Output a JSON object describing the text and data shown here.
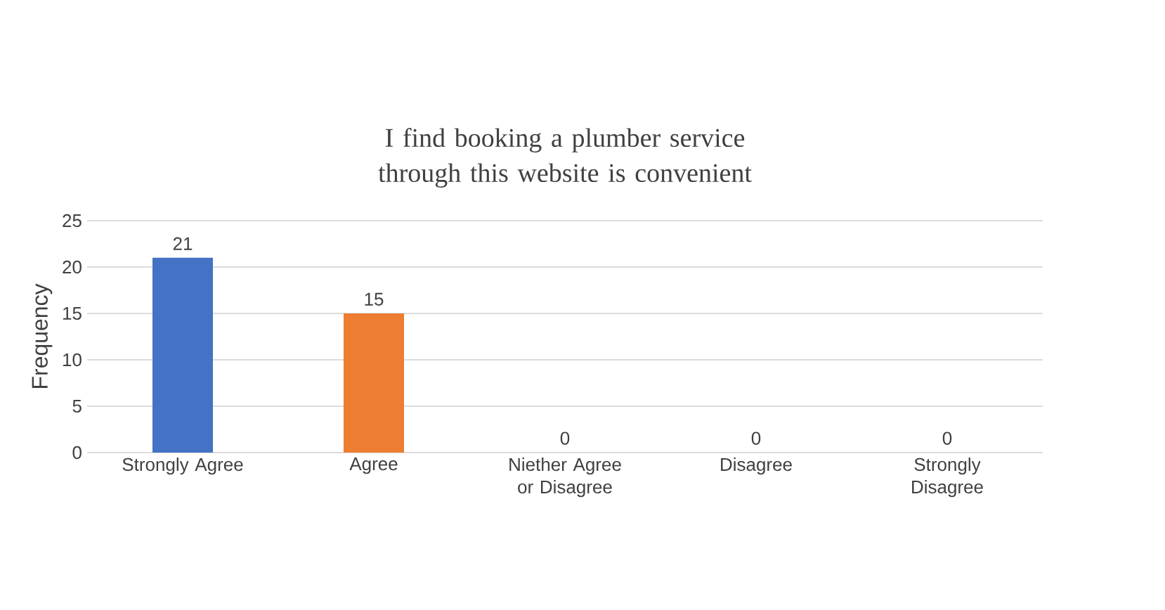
{
  "chart_data": {
    "type": "bar",
    "title": "I find booking a plumber service through this website is convenient",
    "ylabel": "Frequency",
    "categories": [
      "Strongly Agree",
      "Agree",
      "Niether Agree or Disagree",
      "Disagree",
      "Strongly Disagree"
    ],
    "values": [
      21,
      15,
      0,
      0,
      0
    ],
    "colors": [
      "#4472c4",
      "#ed7d31",
      "#a5a5a5",
      "#ffc000",
      "#5b9bd5"
    ],
    "ylim": [
      0,
      25
    ],
    "yticks": [
      0,
      5,
      10,
      15,
      20,
      25
    ],
    "grid": "y",
    "data_labels": true
  }
}
